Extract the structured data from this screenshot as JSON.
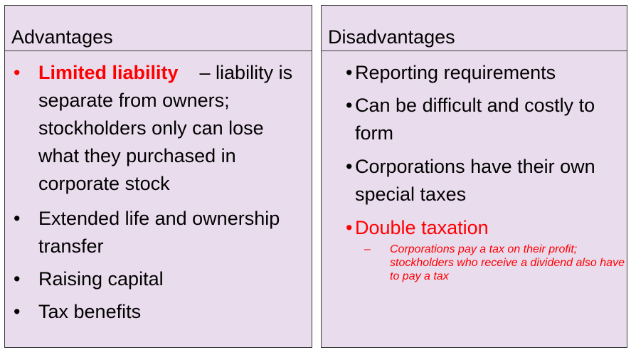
{
  "advantages": {
    "title": "Advantages",
    "bullet": "•",
    "limited_liability": {
      "term": "Limited liability",
      "rest": "– liability is separate from owners; stockholders only can lose what they purchased in corporate stock"
    },
    "items": [
      "Extended life and ownership transfer",
      "Raising capital",
      "Tax benefits"
    ]
  },
  "disadvantages": {
    "title": "Disadvantages",
    "bullet": "•",
    "items": [
      "Reporting requirements",
      "Can be difficult and costly to form",
      "Corporations have their own special taxes"
    ],
    "double_taxation": {
      "term": "Double taxation",
      "dash": "–",
      "detail": "Corporations pay a tax on their profit; stockholders who receive a dividend also have to pay a tax"
    }
  },
  "colors": {
    "panel_background": "#e9dced",
    "border": "#3a3a3a",
    "highlight": "#ff0000",
    "text": "#000000"
  }
}
